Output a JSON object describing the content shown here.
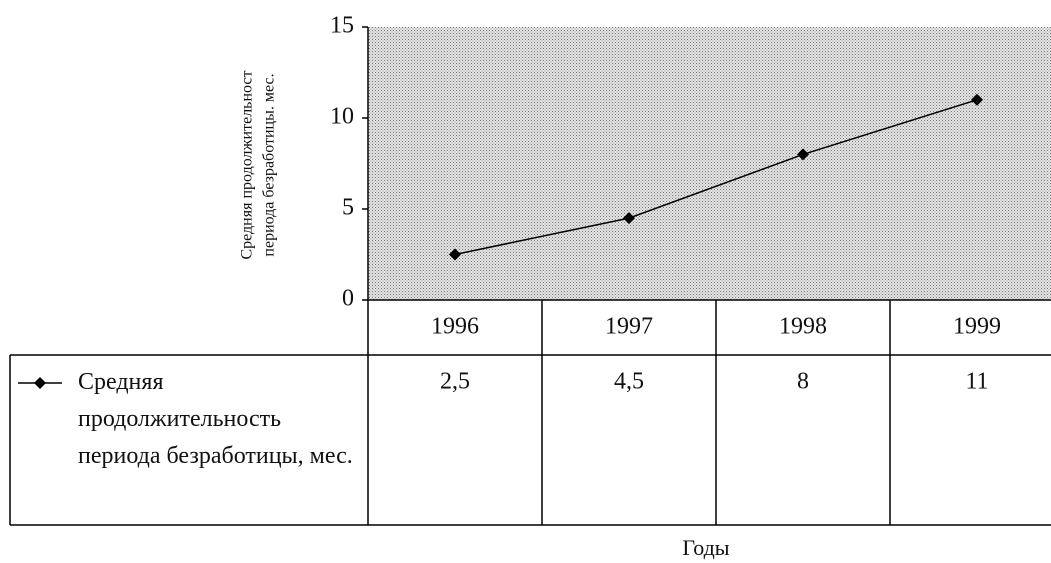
{
  "chart_data": {
    "type": "line",
    "ylabel": [
      "Средняя продолжительност",
      "периода безработицы. мес."
    ],
    "xlabel": "Годы",
    "categories": [
      "1996",
      "1997",
      "1998",
      "1999"
    ],
    "series": [
      {
        "name": "Средняя продолжительность периода безработицы, мес.",
        "color": "#000000",
        "values": [
          2.5,
          4.5,
          8,
          11
        ],
        "value_labels": [
          "2,5",
          "4,5",
          "8",
          "11"
        ]
      }
    ],
    "ylim": [
      0,
      15
    ],
    "yticks": [
      0,
      5,
      10,
      15
    ],
    "grid": false
  }
}
